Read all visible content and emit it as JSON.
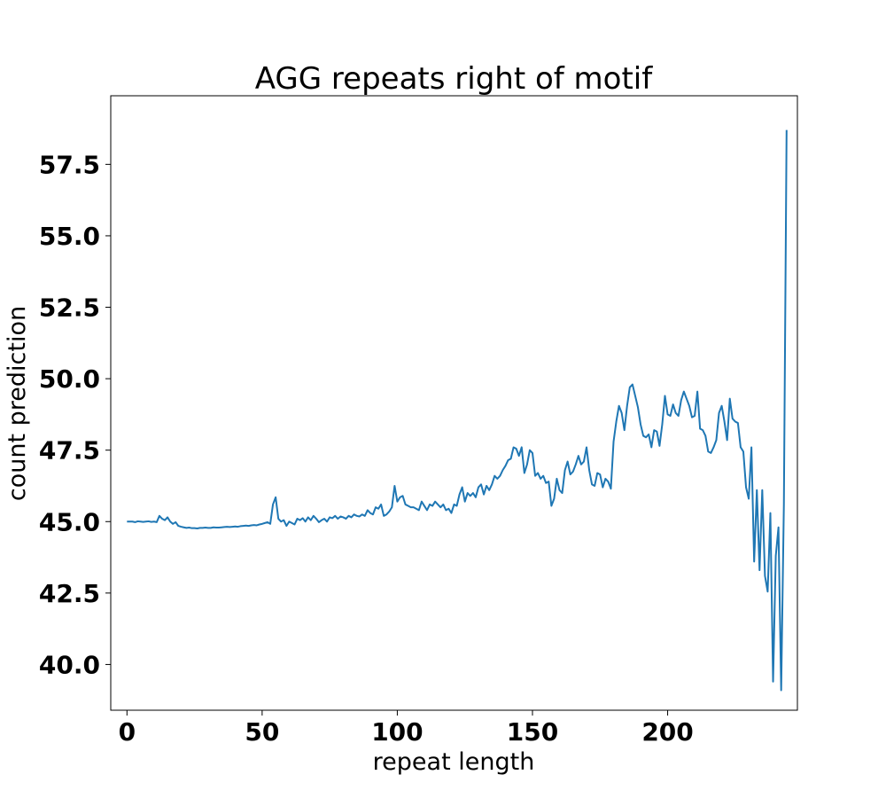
{
  "chart_data": {
    "type": "line",
    "title": "AGG repeats right of motif",
    "xlabel": "repeat length",
    "ylabel": "count prediction",
    "xlim": [
      -6,
      248
    ],
    "ylim": [
      38.4,
      59.9
    ],
    "x_ticks": [
      0,
      50,
      100,
      150,
      200
    ],
    "x_tick_labels": [
      "0",
      "50",
      "100",
      "150",
      "200"
    ],
    "y_ticks": [
      40.0,
      42.5,
      45.0,
      47.5,
      50.0,
      52.5,
      55.0,
      57.5
    ],
    "y_tick_labels": [
      "40.0",
      "42.5",
      "45.0",
      "47.5",
      "50.0",
      "52.5",
      "55.0",
      "57.5"
    ],
    "grid": false,
    "series": [
      {
        "color": "#1f77b4",
        "x_start": 0,
        "x_step": 1,
        "values": [
          45.0,
          45.0,
          45.0,
          44.98,
          45.01,
          45.0,
          44.99,
          45.0,
          45.01,
          44.99,
          45.0,
          44.98,
          45.2,
          45.1,
          45.05,
          45.15,
          45.0,
          44.92,
          44.98,
          44.85,
          44.82,
          44.8,
          44.78,
          44.79,
          44.77,
          44.77,
          44.76,
          44.78,
          44.78,
          44.79,
          44.78,
          44.78,
          44.8,
          44.79,
          44.79,
          44.8,
          44.81,
          44.82,
          44.81,
          44.82,
          44.83,
          44.82,
          44.84,
          44.85,
          44.86,
          44.85,
          44.87,
          44.88,
          44.87,
          44.9,
          44.92,
          44.95,
          44.98,
          44.92,
          45.6,
          45.85,
          45.1,
          45.0,
          45.05,
          44.85,
          45.0,
          44.95,
          44.9,
          45.1,
          45.05,
          45.12,
          45.0,
          45.15,
          45.05,
          45.2,
          45.1,
          44.98,
          45.05,
          45.1,
          45.0,
          45.15,
          45.12,
          45.2,
          45.1,
          45.18,
          45.15,
          45.1,
          45.2,
          45.15,
          45.25,
          45.2,
          45.18,
          45.25,
          45.2,
          45.4,
          45.3,
          45.25,
          45.5,
          45.45,
          45.6,
          45.2,
          45.25,
          45.35,
          45.5,
          46.25,
          45.7,
          45.85,
          45.9,
          45.6,
          45.55,
          45.5,
          45.5,
          45.45,
          45.4,
          45.7,
          45.55,
          45.4,
          45.6,
          45.55,
          45.7,
          45.6,
          45.5,
          45.6,
          45.4,
          45.45,
          45.3,
          45.6,
          45.55,
          45.95,
          46.2,
          45.7,
          46.0,
          45.9,
          46.0,
          45.85,
          46.2,
          46.3,
          45.95,
          46.25,
          46.1,
          46.3,
          46.6,
          46.5,
          46.6,
          46.8,
          46.95,
          47.15,
          47.2,
          47.6,
          47.55,
          47.3,
          47.6,
          46.7,
          47.0,
          47.5,
          47.4,
          46.6,
          46.7,
          46.5,
          46.6,
          46.35,
          46.4,
          45.55,
          45.8,
          46.5,
          46.1,
          46.0,
          46.8,
          47.1,
          46.65,
          46.75,
          47.0,
          47.3,
          47.0,
          47.1,
          47.6,
          46.8,
          46.3,
          46.25,
          46.7,
          46.65,
          46.2,
          46.5,
          46.4,
          46.15,
          47.8,
          48.5,
          49.05,
          48.8,
          48.2,
          49.05,
          49.7,
          49.8,
          49.4,
          49.0,
          48.4,
          48.0,
          47.95,
          48.05,
          47.6,
          48.2,
          48.15,
          47.65,
          48.4,
          49.4,
          48.75,
          48.7,
          49.1,
          48.8,
          48.7,
          49.25,
          49.55,
          49.3,
          49.05,
          48.65,
          48.7,
          49.55,
          48.25,
          48.2,
          48.0,
          47.45,
          47.4,
          47.6,
          47.85,
          48.8,
          49.05,
          48.5,
          47.85,
          49.3,
          48.6,
          48.5,
          48.45,
          47.6,
          47.45,
          46.2,
          45.8,
          47.6,
          43.6,
          46.1,
          43.3,
          46.1,
          43.1,
          42.55,
          45.3,
          39.4,
          43.8,
          44.8,
          39.1,
          45.6,
          58.7
        ]
      }
    ]
  }
}
